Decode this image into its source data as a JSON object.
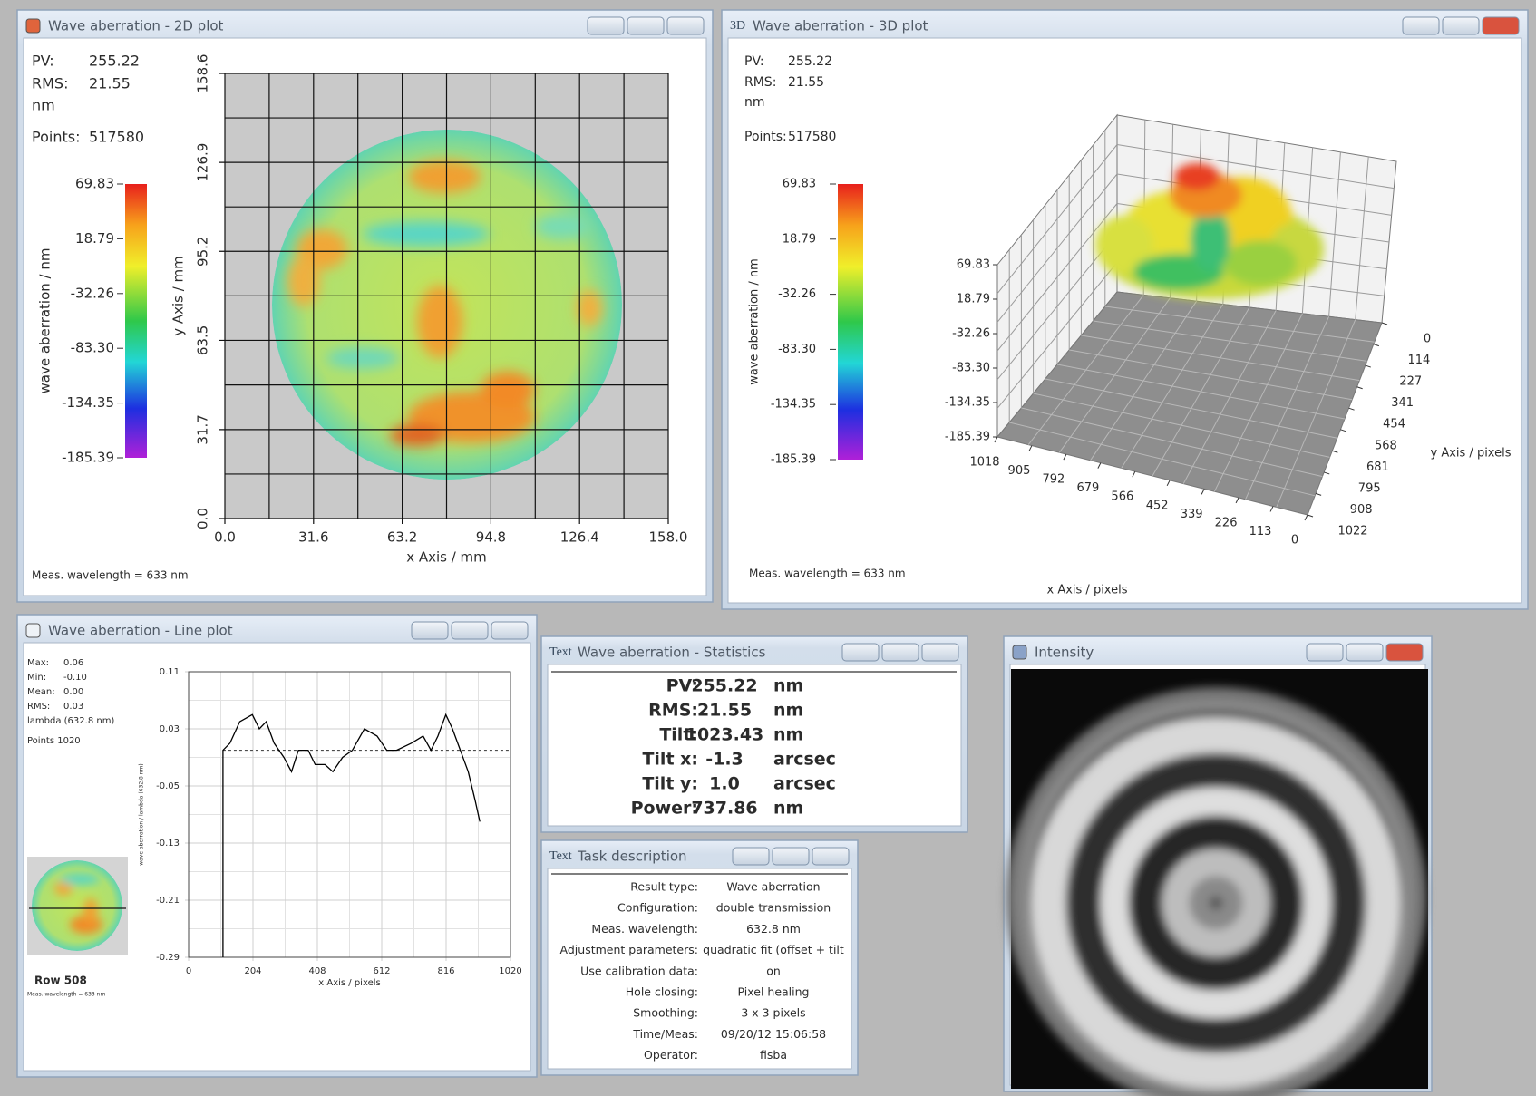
{
  "plot_2d": {
    "title": "Wave aberration - 2D plot",
    "pv_label": "PV:",
    "pv": "255.22",
    "rms_label": "RMS:",
    "rms": "21.55",
    "unit": "nm",
    "points_label": "Points:",
    "points": "517580",
    "wavelength": "Meas. wavelength = 633 nm",
    "colorbar": {
      "label": "wave aberration / nm",
      "lim": [
        -185.39,
        69.83
      ],
      "ticks": [
        69.83,
        18.79,
        -32.26,
        {
          "value": -83.3,
          "label": "-83.30"
        },
        -134.35,
        -185.39
      ]
    },
    "xlabel": "x Axis / mm",
    "ylabel": "y Axis / mm",
    "xlim": [
      0,
      158
    ],
    "xticks": [
      {
        "value": 0,
        "label": "0.0"
      },
      31.6,
      63.2,
      94.8,
      126.4,
      {
        "value": 158,
        "label": "158.0"
      }
    ],
    "ylim": [
      0,
      158.6
    ],
    "yticks": [
      {
        "value": 0,
        "label": "0.0"
      },
      31.7,
      63.5,
      95.2,
      126.9,
      158.6
    ]
  },
  "plot_3d": {
    "icon": "3D",
    "title": "Wave aberration - 3D plot",
    "pv_label": "PV:",
    "pv": "255.22",
    "rms_label": "RMS:",
    "rms": "21.55",
    "unit": "nm",
    "points_label": "Points:",
    "points": "517580",
    "wavelength": "Meas. wavelength = 633 nm",
    "colorbar": {
      "label": "wave aberration / nm",
      "lim": [
        -185.39,
        69.83
      ],
      "ticks": [
        69.83,
        18.79,
        -32.26,
        {
          "value": -83.3,
          "label": "-83.30"
        },
        -134.35,
        -185.39
      ]
    },
    "zlim": [
      -185.39,
      69.83
    ],
    "zticks": [
      69.83,
      18.79,
      -32.26,
      {
        "value": -83.3,
        "label": "-83.30"
      },
      -134.35,
      -185.39
    ],
    "xlabel": "x Axis / pixels",
    "ylabel": "y Axis / pixels",
    "xlim": [
      0,
      1018
    ],
    "xticks": [
      1018,
      905,
      792,
      679,
      566,
      452,
      339,
      226,
      113,
      0
    ],
    "ylim": [
      0,
      1022
    ],
    "yticks": [
      0,
      114,
      227,
      341,
      454,
      568,
      681,
      795,
      908,
      1022
    ]
  },
  "line_plot": {
    "title": "Wave aberration - Line plot",
    "stats": [
      {
        "name": "Max:",
        "value": "0.06"
      },
      {
        "name": "Min:",
        "value": "-0.10"
      },
      {
        "name": "Mean:",
        "value": "0.00"
      },
      {
        "name": "RMS:",
        "value": "0.03"
      }
    ],
    "unit": "lambda (632.8 nm)",
    "points": "Points 1020",
    "row": "Row  508",
    "wavelength": "Meas. wavelength = 633 nm",
    "chart_data": {
      "type": "line",
      "xlabel": "x Axis / pixels",
      "ylabel": "wave aberration / lambda (632.8 nm)",
      "x": [
        109,
        109,
        131,
        162,
        202,
        224,
        246,
        271,
        302,
        326,
        348,
        379,
        401,
        432,
        457,
        488,
        519,
        557,
        597,
        628,
        659,
        706,
        743,
        768,
        790,
        815,
        836,
        861,
        886,
        908,
        923
      ],
      "values": [
        -0.29,
        0,
        0.01,
        0.04,
        0.05,
        0.03,
        0.04,
        0.01,
        -0.01,
        -0.03,
        0,
        0,
        -0.02,
        -0.02,
        -0.03,
        -0.01,
        0,
        0.03,
        0.02,
        0,
        0,
        0.01,
        0.02,
        0,
        0.02,
        0.05,
        0.03,
        0,
        -0.03,
        -0.07,
        -0.1
      ],
      "color": "#000000",
      "grid": true,
      "xlim": [
        0,
        1020
      ],
      "xticks": [
        0,
        204,
        408,
        612,
        816,
        1020
      ],
      "ylim": [
        -0.29,
        0.11
      ],
      "yticks": [
        0.11,
        0.03,
        -0.05,
        -0.13,
        -0.21,
        -0.29
      ]
    }
  },
  "statistics": {
    "icon": "Text",
    "title": "Wave aberration - Statistics",
    "rows": [
      [
        "PV:",
        "255.22",
        "nm"
      ],
      [
        "RMS:",
        "21.55",
        "nm"
      ],
      [
        "Tilt:",
        "1023.43",
        "nm"
      ],
      [
        "Tilt x:",
        "-1.3",
        "arcsec"
      ],
      [
        "Tilt y:",
        "1.0",
        "arcsec"
      ],
      [
        "Power:",
        "737.86",
        "nm"
      ]
    ]
  },
  "task": {
    "icon": "Text",
    "title": "Task description",
    "rows": [
      [
        "Result type:",
        "Wave aberration"
      ],
      [
        "Configuration:",
        "double transmission"
      ],
      [
        "Meas. wavelength:",
        "632.8 nm"
      ],
      [
        "Adjustment parameters:",
        "quadratic fit (offset + tilt"
      ],
      [
        "Use calibration data:",
        "on"
      ],
      [
        "Hole closing:",
        "Pixel healing"
      ],
      [
        "Smoothing:",
        "3 x 3 pixels"
      ],
      [
        "Time/Meas:",
        "09/20/12 15:06:58"
      ],
      [
        "Operator:",
        "fisba"
      ]
    ]
  },
  "intensity": {
    "title": "Intensity"
  }
}
